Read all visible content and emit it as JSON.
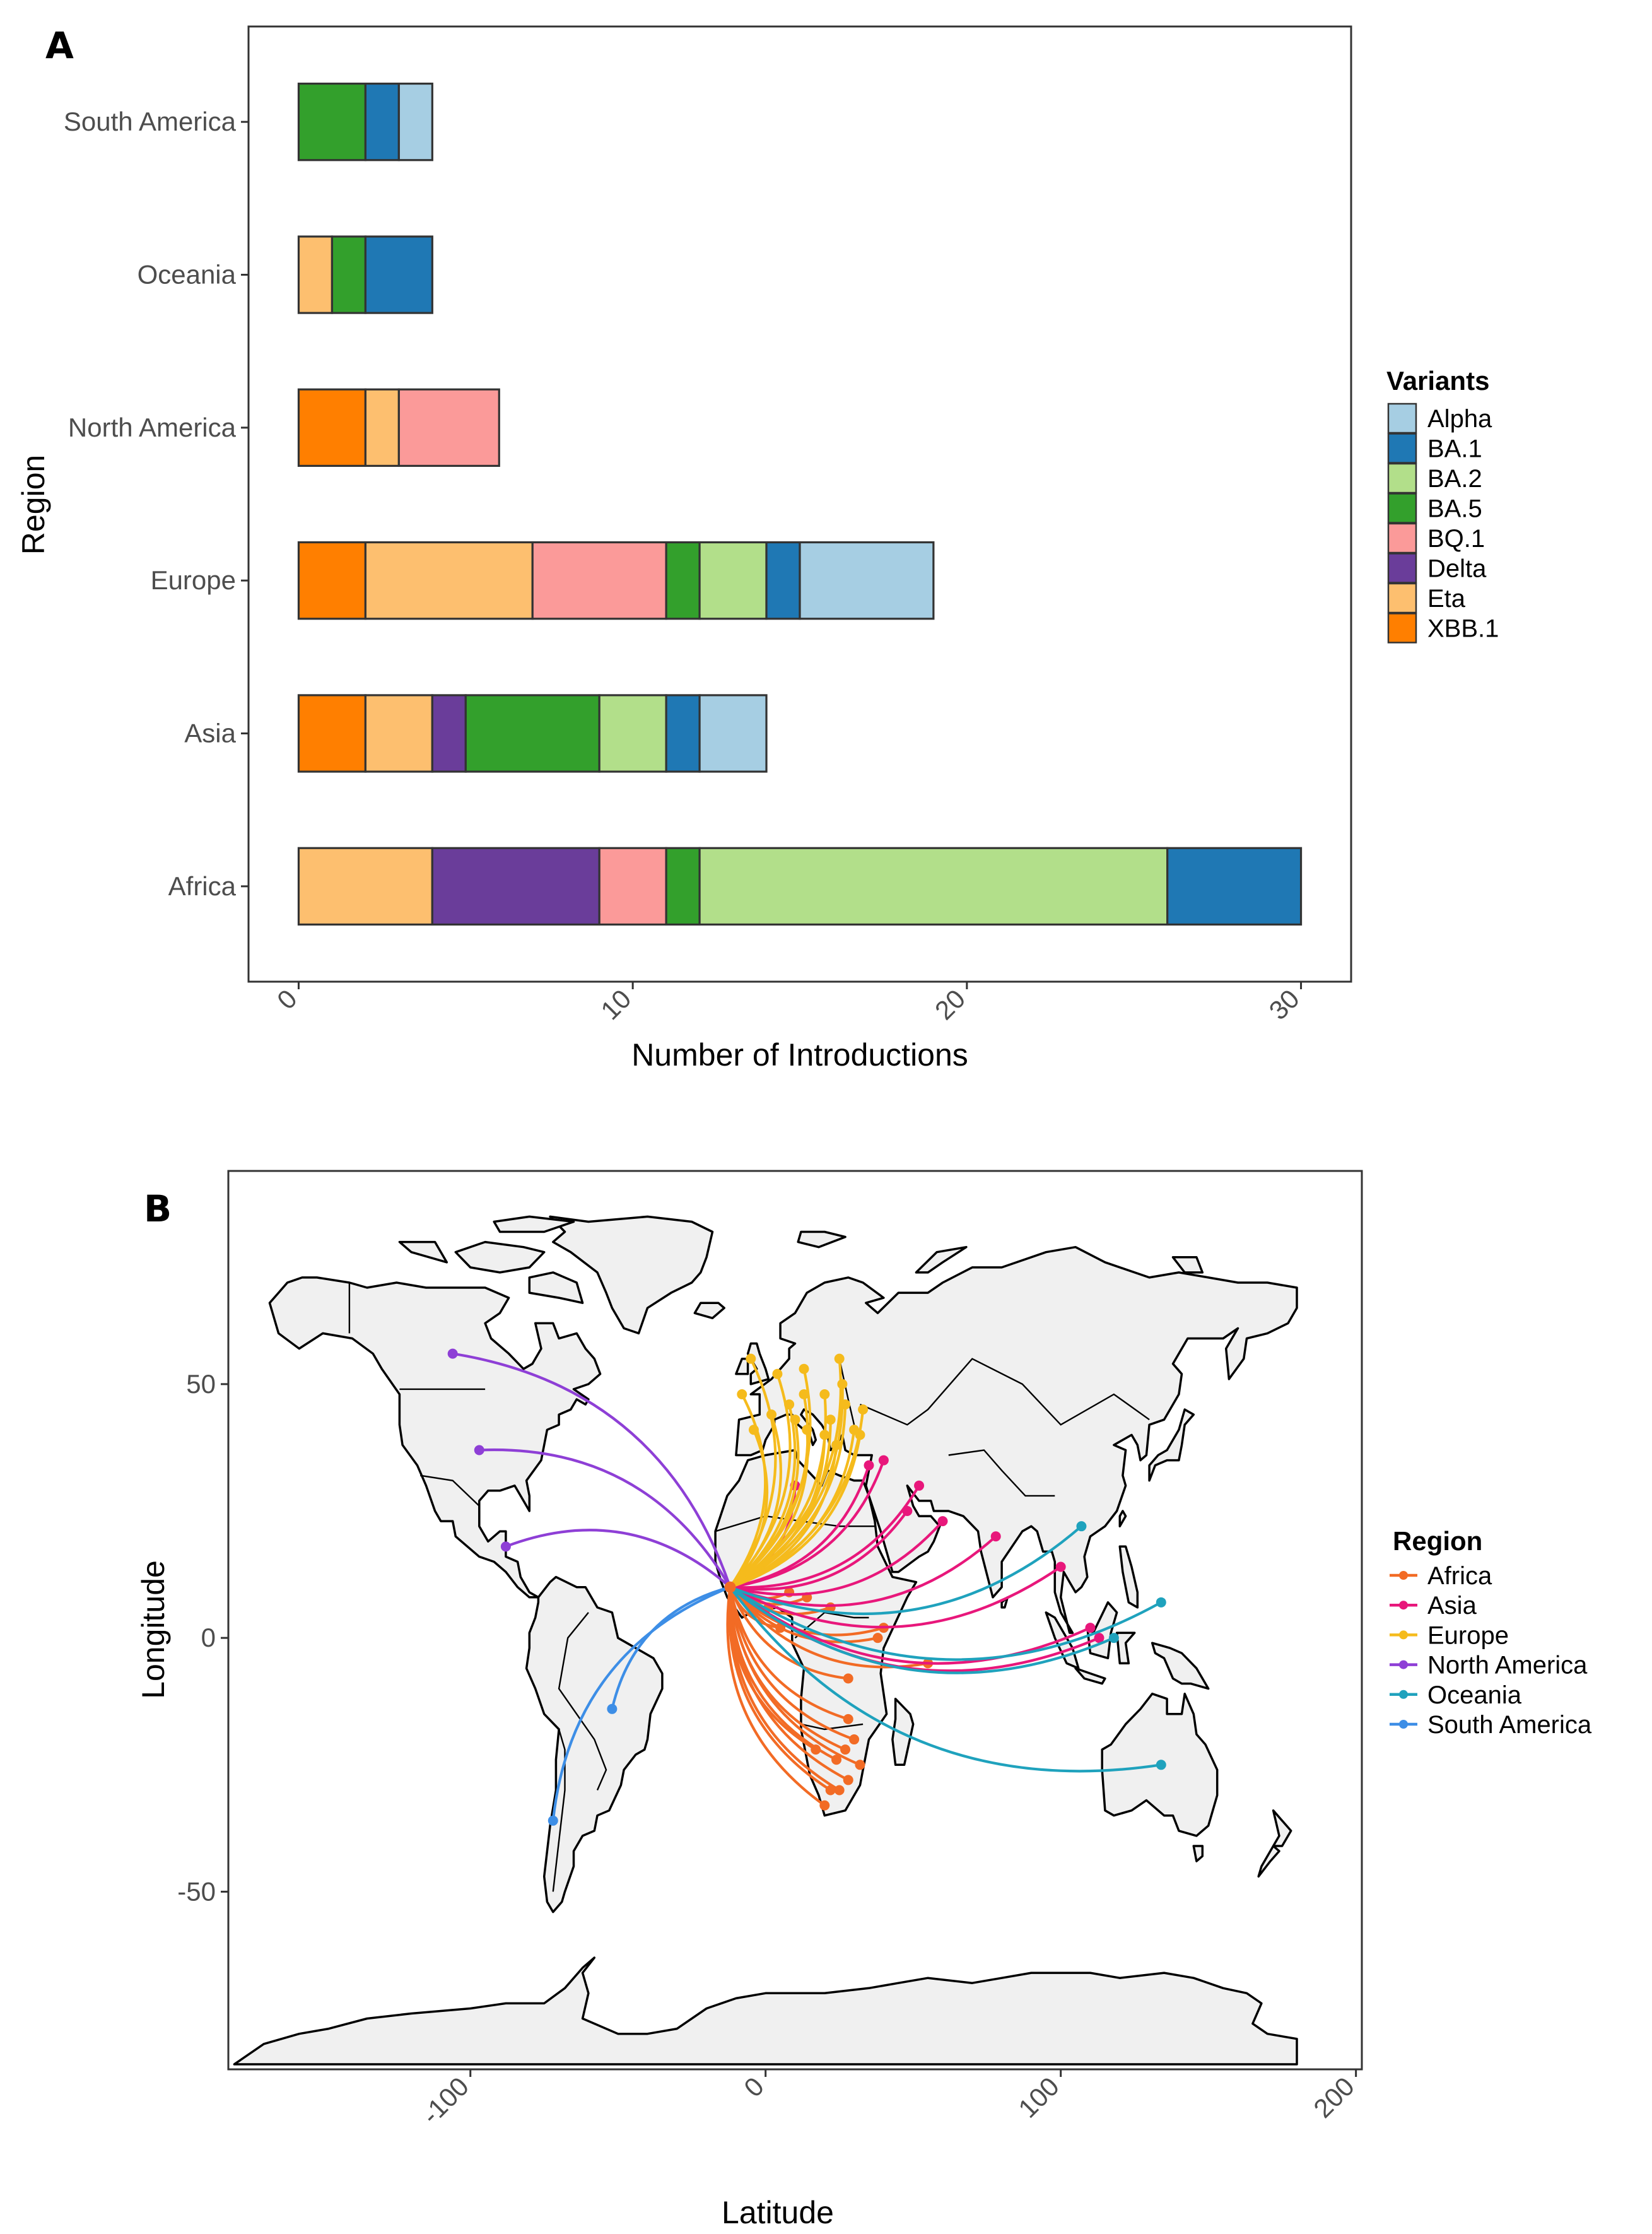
{
  "colors": {
    "Alpha": "#a6cee3",
    "BA.1": "#1f78b4",
    "BA.2": "#b2df8a",
    "BA.5": "#33a02c",
    "BQ.1": "#fb9a99",
    "Delta": "#6a3d9a",
    "Eta": "#fdbf6f",
    "XBB.1": "#ff7f00",
    "Africa": "#f26b25",
    "Asia": "#e8177b",
    "Europe": "#f5bb1c",
    "North America": "#8e3fd6",
    "Oceania": "#1fa2bd",
    "South America": "#3d8ee6"
  },
  "chart_data": [
    {
      "type": "bar",
      "orientation": "horizontal",
      "stacked": true,
      "panel_label": "A",
      "xlabel": "Number of Introductions",
      "ylabel": "Region",
      "xlim": [
        -1.5,
        31.5
      ],
      "xticks": [
        0,
        10,
        20,
        30
      ],
      "categories": [
        "Africa",
        "Asia",
        "Europe",
        "North America",
        "Oceania",
        "South America"
      ],
      "legend_title": "Variants",
      "legend_entries": [
        "Alpha",
        "BA.1",
        "BA.2",
        "BA.5",
        "BQ.1",
        "Delta",
        "Eta",
        "XBB.1"
      ],
      "stack_order": [
        "XBB.1",
        "Eta",
        "Delta",
        "BQ.1",
        "BA.5",
        "BA.2",
        "BA.1",
        "Alpha"
      ],
      "series": [
        {
          "name": "Alpha",
          "values": [
            0,
            2,
            4,
            0,
            0,
            1
          ]
        },
        {
          "name": "BA.1",
          "values": [
            4,
            1,
            1,
            0,
            2,
            1
          ]
        },
        {
          "name": "BA.2",
          "values": [
            14,
            2,
            2,
            0,
            0,
            0
          ]
        },
        {
          "name": "BA.5",
          "values": [
            1,
            4,
            1,
            0,
            1,
            2
          ]
        },
        {
          "name": "BQ.1",
          "values": [
            2,
            0,
            4,
            3,
            0,
            0
          ]
        },
        {
          "name": "Delta",
          "values": [
            5,
            1,
            0,
            0,
            0,
            0
          ]
        },
        {
          "name": "Eta",
          "values": [
            4,
            2,
            5,
            1,
            1,
            0
          ]
        },
        {
          "name": "XBB.1",
          "values": [
            0,
            2,
            2,
            2,
            0,
            0
          ]
        }
      ]
    },
    {
      "type": "scatter",
      "subtype": "flow-map",
      "panel_label": "B",
      "xlabel": "Latitude",
      "ylabel": "Longitude",
      "xlim": [
        -182,
        202
      ],
      "ylim": [
        -85,
        92
      ],
      "xticks": [
        -100,
        0,
        100,
        200
      ],
      "yticks": [
        -50,
        0,
        50
      ],
      "legend_title": "Region",
      "legend_entries": [
        "Africa",
        "Asia",
        "Europe",
        "North America",
        "Oceania",
        "South America"
      ],
      "origin": [
        -12,
        10
      ],
      "flows": [
        {
          "region": "Africa",
          "to": [
            [
              55,
              -5
            ],
            [
              40,
              2
            ],
            [
              38,
              0
            ],
            [
              22,
              6
            ],
            [
              28,
              -16
            ],
            [
              30,
              -20
            ],
            [
              24,
              -24
            ],
            [
              27,
              -22
            ],
            [
              25,
              -30
            ],
            [
              22,
              -30
            ],
            [
              28,
              -28
            ],
            [
              32,
              -25
            ],
            [
              17,
              -22
            ],
            [
              20,
              -33
            ],
            [
              14,
              8
            ],
            [
              5,
              2
            ],
            [
              1,
              6
            ],
            [
              -5,
              7
            ],
            [
              8,
              9
            ],
            [
              28,
              -8
            ]
          ]
        },
        {
          "region": "Asia",
          "to": [
            [
              113,
              0
            ],
            [
              110,
              2
            ],
            [
              100,
              14
            ],
            [
              78,
              20
            ],
            [
              60,
              23
            ],
            [
              48,
              25
            ],
            [
              52,
              30
            ],
            [
              40,
              35
            ],
            [
              35,
              34
            ],
            [
              10,
              30
            ]
          ]
        },
        {
          "region": "Europe",
          "to": [
            [
              -5,
              55
            ],
            [
              4,
              52
            ],
            [
              13,
              53
            ],
            [
              25,
              55
            ],
            [
              13,
              48
            ],
            [
              20,
              48
            ],
            [
              27,
              46
            ],
            [
              22,
              43
            ],
            [
              14,
              41
            ],
            [
              30,
              41
            ],
            [
              8,
              46
            ],
            [
              -4,
              41
            ],
            [
              2,
              44
            ],
            [
              20,
              40
            ],
            [
              24,
              38
            ],
            [
              32,
              40
            ],
            [
              33,
              45
            ],
            [
              -8,
              48
            ],
            [
              10,
              43
            ],
            [
              26,
              50
            ]
          ]
        },
        {
          "region": "North America",
          "to": [
            [
              -106,
              56
            ],
            [
              -97,
              37
            ],
            [
              -88,
              18
            ]
          ]
        },
        {
          "region": "Oceania",
          "to": [
            [
              134,
              7
            ],
            [
              134,
              -25
            ],
            [
              118,
              0
            ],
            [
              107,
              22
            ]
          ]
        },
        {
          "region": "South America",
          "to": [
            [
              -52,
              -14
            ],
            [
              -72,
              -36
            ]
          ]
        }
      ]
    }
  ]
}
